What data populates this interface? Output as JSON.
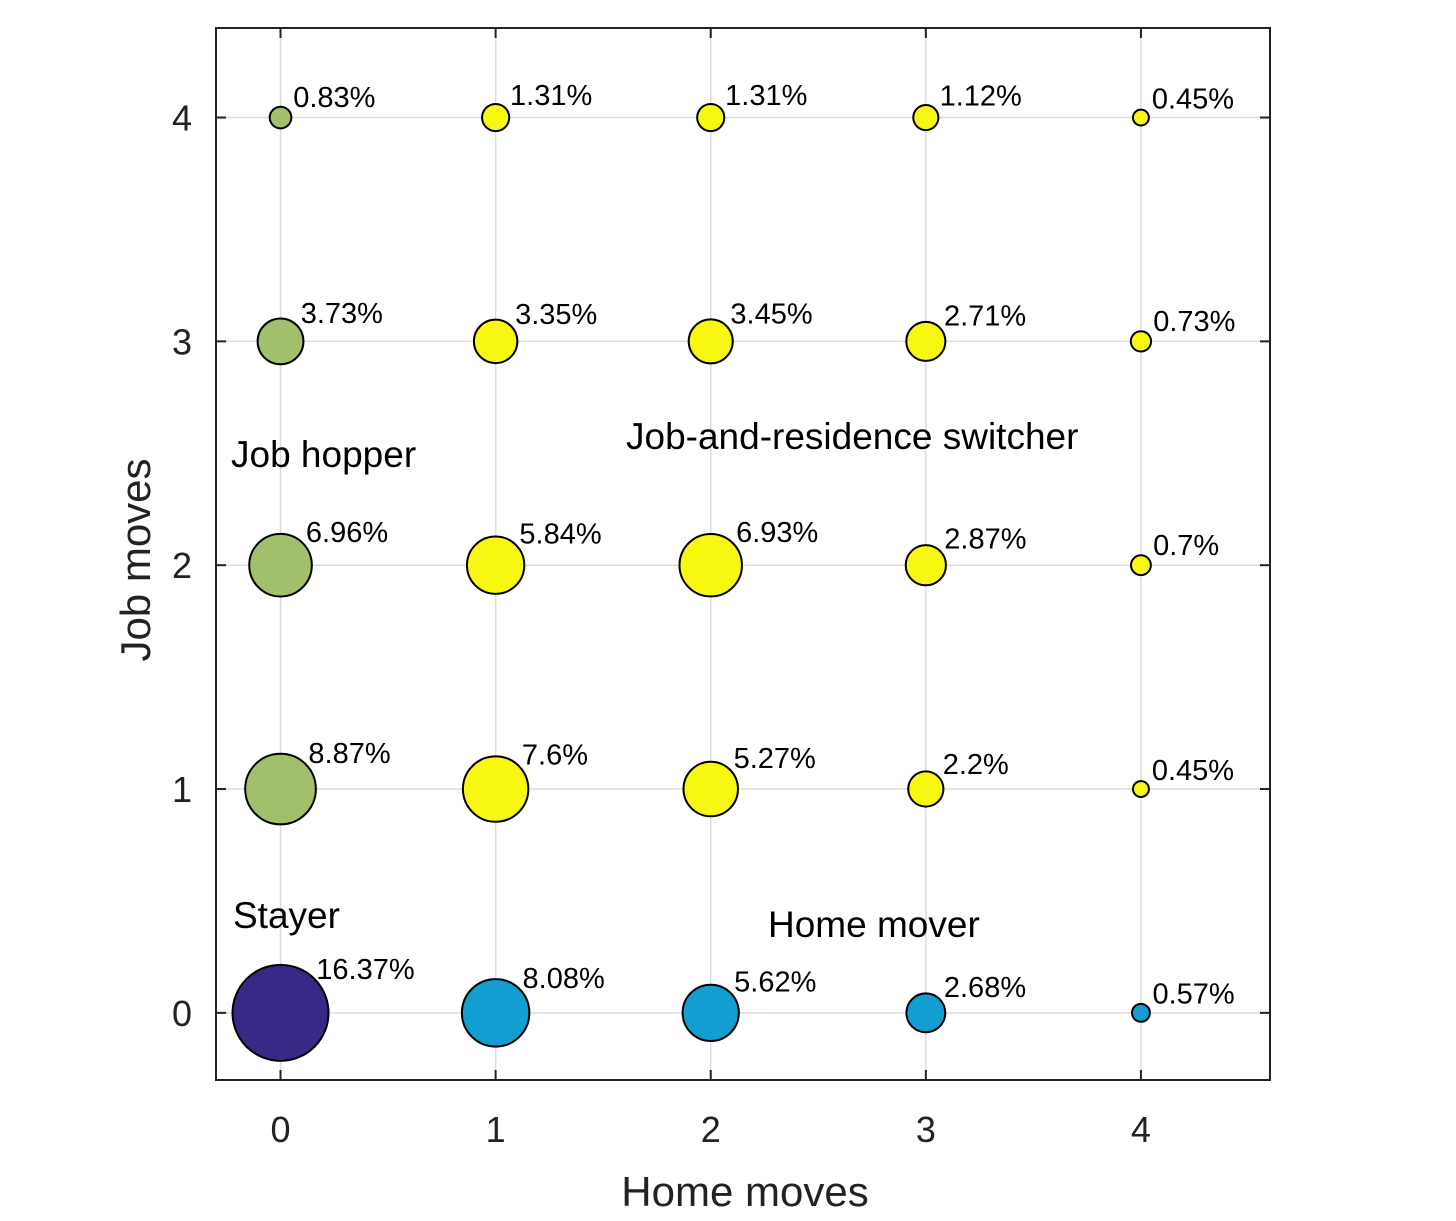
{
  "chart_data": {
    "type": "scatter",
    "xlabel": "Home moves",
    "ylabel": "Job moves",
    "xlim": [
      -0.3,
      4.6
    ],
    "ylim": [
      -0.3,
      4.4
    ],
    "xticks": [
      "0",
      "1",
      "2",
      "3",
      "4"
    ],
    "yticks": [
      "0",
      "1",
      "2",
      "3",
      "4"
    ],
    "grid": true,
    "colors": {
      "stayer": "#372a87",
      "home_mover": "#139ed2",
      "job_hopper": "#a2bf6b",
      "switcher": "#f7f712"
    },
    "points": [
      {
        "x": 0,
        "y": 0,
        "value": 16.37,
        "label": "16.37%",
        "group": "stayer"
      },
      {
        "x": 1,
        "y": 0,
        "value": 8.08,
        "label": "8.08%",
        "group": "home_mover"
      },
      {
        "x": 2,
        "y": 0,
        "value": 5.62,
        "label": "5.62%",
        "group": "home_mover"
      },
      {
        "x": 3,
        "y": 0,
        "value": 2.68,
        "label": "2.68%",
        "group": "home_mover"
      },
      {
        "x": 4,
        "y": 0,
        "value": 0.57,
        "label": "0.57%",
        "group": "home_mover"
      },
      {
        "x": 0,
        "y": 1,
        "value": 8.87,
        "label": "8.87%",
        "group": "job_hopper"
      },
      {
        "x": 1,
        "y": 1,
        "value": 7.6,
        "label": "7.6%",
        "group": "switcher"
      },
      {
        "x": 2,
        "y": 1,
        "value": 5.27,
        "label": "5.27%",
        "group": "switcher"
      },
      {
        "x": 3,
        "y": 1,
        "value": 2.2,
        "label": "2.2%",
        "group": "switcher"
      },
      {
        "x": 4,
        "y": 1,
        "value": 0.45,
        "label": "0.45%",
        "group": "switcher"
      },
      {
        "x": 0,
        "y": 2,
        "value": 6.96,
        "label": "6.96%",
        "group": "job_hopper"
      },
      {
        "x": 1,
        "y": 2,
        "value": 5.84,
        "label": "5.84%",
        "group": "switcher"
      },
      {
        "x": 2,
        "y": 2,
        "value": 6.93,
        "label": "6.93%",
        "group": "switcher"
      },
      {
        "x": 3,
        "y": 2,
        "value": 2.87,
        "label": "2.87%",
        "group": "switcher"
      },
      {
        "x": 4,
        "y": 2,
        "value": 0.7,
        "label": "0.7%",
        "group": "switcher"
      },
      {
        "x": 0,
        "y": 3,
        "value": 3.73,
        "label": "3.73%",
        "group": "job_hopper"
      },
      {
        "x": 1,
        "y": 3,
        "value": 3.35,
        "label": "3.35%",
        "group": "switcher"
      },
      {
        "x": 2,
        "y": 3,
        "value": 3.45,
        "label": "3.45%",
        "group": "switcher"
      },
      {
        "x": 3,
        "y": 3,
        "value": 2.71,
        "label": "2.71%",
        "group": "switcher"
      },
      {
        "x": 4,
        "y": 3,
        "value": 0.73,
        "label": "0.73%",
        "group": "switcher"
      },
      {
        "x": 0,
        "y": 4,
        "value": 0.83,
        "label": "0.83%",
        "group": "job_hopper"
      },
      {
        "x": 1,
        "y": 4,
        "value": 1.31,
        "label": "1.31%",
        "group": "switcher"
      },
      {
        "x": 2,
        "y": 4,
        "value": 1.31,
        "label": "1.31%",
        "group": "switcher"
      },
      {
        "x": 3,
        "y": 4,
        "value": 1.12,
        "label": "1.12%",
        "group": "switcher"
      },
      {
        "x": 4,
        "y": 4,
        "value": 0.45,
        "label": "0.45%",
        "group": "switcher"
      }
    ],
    "annotations": {
      "stayer": "Stayer",
      "home_mover": "Home mover",
      "job_hopper": "Job hopper",
      "switcher": "Job-and-residence switcher"
    }
  }
}
